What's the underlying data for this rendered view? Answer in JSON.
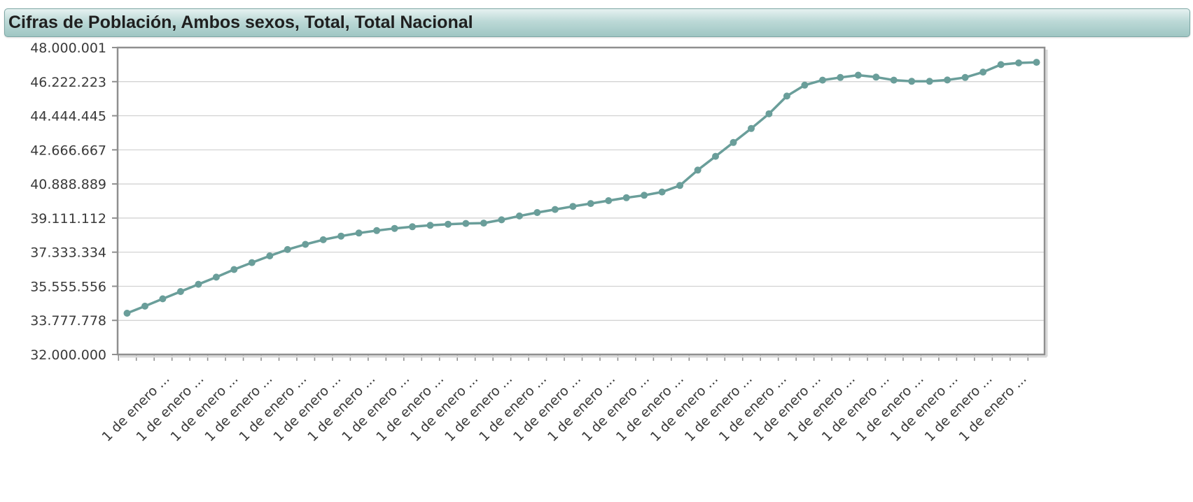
{
  "title": "Cifras de Población, Ambos sexos, Total, Total Nacional",
  "colors": {
    "series": "#6a9e9a",
    "grid": "#cfcfcf",
    "frame": "#8f8f8f"
  },
  "chart_data": {
    "type": "line",
    "title": "Cifras de Población, Ambos sexos, Total, Total Nacional",
    "xlabel": "",
    "ylabel": "",
    "ylim": [
      32000000,
      48000001
    ],
    "grid": true,
    "y_tick_labels": [
      "32.000.000",
      "33.777.778",
      "35.555.556",
      "37.333.334",
      "39.111.112",
      "40.888.889",
      "42.666.667",
      "44.444.445",
      "46.222.223",
      "48.000.001"
    ],
    "x_tick_labels": [
      "1 de enero ...",
      "1 de enero ...",
      "1 de enero ...",
      "1 de enero ...",
      "1 de enero ...",
      "1 de enero ...",
      "1 de enero ...",
      "1 de enero ...",
      "1 de enero ...",
      "1 de enero ...",
      "1 de enero ...",
      "1 de enero ...",
      "1 de enero ...",
      "1 de enero ...",
      "1 de enero ...",
      "1 de enero ...",
      "1 de enero ...",
      "1 de enero ...",
      "1 de enero ...",
      "1 de enero ...",
      "1 de enero ...",
      "1 de enero ...",
      "1 de enero ...",
      "1 de enero ...",
      "1 de enero ...",
      "1 de enero ..."
    ],
    "series": [
      {
        "values": [
          34150000,
          34520000,
          34900000,
          35280000,
          35660000,
          36030000,
          36430000,
          36790000,
          37140000,
          37470000,
          37740000,
          37980000,
          38170000,
          38330000,
          38460000,
          38570000,
          38660000,
          38730000,
          38790000,
          38830000,
          38850000,
          39020000,
          39220000,
          39400000,
          39560000,
          39720000,
          39870000,
          40020000,
          40170000,
          40300000,
          40470000,
          40810000,
          41610000,
          42330000,
          43050000,
          43780000,
          44550000,
          45470000,
          46040000,
          46300000,
          46440000,
          46560000,
          46460000,
          46300000,
          46240000,
          46240000,
          46310000,
          46440000,
          46720000,
          47110000,
          47200000,
          47230000
        ]
      }
    ]
  }
}
